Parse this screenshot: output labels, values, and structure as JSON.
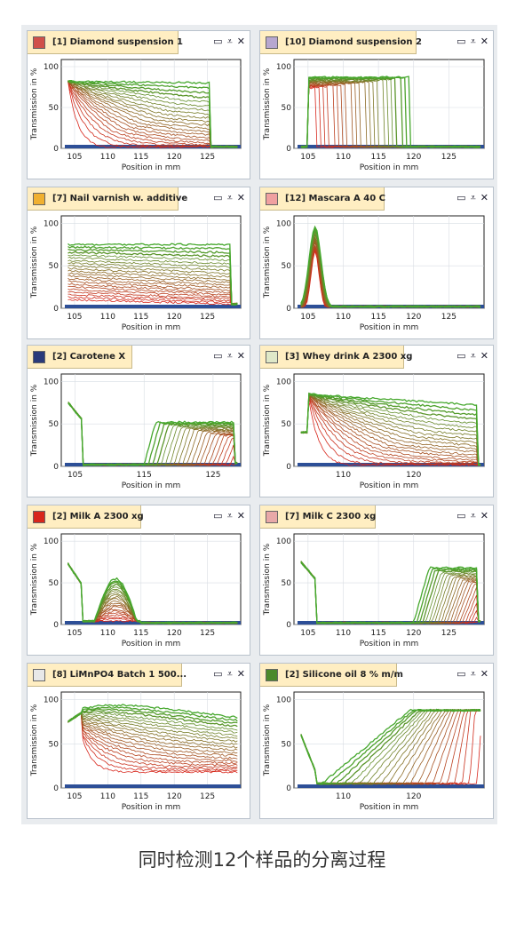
{
  "caption": "同时检测12个样品的分离过程",
  "controls": {
    "maximize": "▭",
    "menu": "⩡",
    "close": "✕"
  },
  "colors": {
    "early": "#d8261c",
    "late": "#46a82e",
    "baseline": "#2d4f97"
  },
  "axis_labels": {
    "ylabel": "Transmission in %",
    "xlabel": "Position in mm"
  },
  "chart_data": [
    {
      "type": "line",
      "title": "[1] Diamond suspension 1",
      "swatch": "#d0504a",
      "xlim": [
        103,
        130
      ],
      "ylim": [
        0,
        100
      ],
      "xticks": [
        105,
        110,
        115,
        120,
        125
      ],
      "yticks": [
        0,
        50,
        100
      ],
      "profile": "sediment",
      "params": {
        "x0": 104,
        "x1": 125.5,
        "yStart": 82,
        "yEnd": 80,
        "endDrop": [
          82,
          40
        ]
      }
    },
    {
      "type": "line",
      "title": "[10] Diamond suspension 2",
      "swatch": "#b7a7cf",
      "xlim": [
        103,
        130
      ],
      "ylim": [
        0,
        100
      ],
      "xticks": [
        105,
        110,
        115,
        120,
        125
      ],
      "yticks": [
        0,
        50,
        100
      ],
      "profile": "front",
      "params": {
        "x0": 105,
        "xFrontStart": 106,
        "xFrontEnd": 119.5,
        "yTop": 87
      }
    },
    {
      "type": "line",
      "title": "[7] Nail varnish w. additive",
      "swatch": "#f0b030",
      "xlim": [
        103,
        130
      ],
      "ylim": [
        0,
        100
      ],
      "xticks": [
        105,
        110,
        115,
        120,
        125
      ],
      "yticks": [
        0,
        50,
        100
      ],
      "profile": "plateau",
      "params": {
        "x0": 104,
        "x1": 128.5,
        "yTop": 75,
        "yLow": 10
      }
    },
    {
      "type": "line",
      "title": "[12] Mascara A 40 C",
      "swatch": "#f0a0a0",
      "xlim": [
        103,
        130
      ],
      "ylim": [
        0,
        100
      ],
      "xticks": [
        105,
        110,
        115,
        120,
        125
      ],
      "yticks": [
        0,
        50,
        100
      ],
      "profile": "spike",
      "params": {
        "xPeak": 106,
        "yPeak": 95
      }
    },
    {
      "type": "line",
      "title": "[2] Carotene X",
      "swatch": "#2a3a7a",
      "xlim": [
        103,
        129
      ],
      "ylim": [
        0,
        100
      ],
      "xticks": [
        105,
        115,
        125
      ],
      "yticks": [
        0,
        50,
        100
      ],
      "profile": "clear_rise",
      "params": {
        "xDrop": 106,
        "xRiseStart": 115,
        "xRiseEnd": 128,
        "yTop": 52
      }
    },
    {
      "type": "line",
      "title": "[3] Whey drink A 2300 xg",
      "swatch": "#dfe8c8",
      "xlim": [
        103,
        130
      ],
      "ylim": [
        0,
        100
      ],
      "xticks": [
        110,
        120
      ],
      "yticks": [
        0,
        50,
        100
      ],
      "profile": "sediment",
      "params": {
        "x0": 105,
        "x1": 129,
        "yStart": 85,
        "yEnd": 72,
        "endDrop": [
          40,
          30
        ]
      }
    },
    {
      "type": "line",
      "title": "[2] Milk A  2300 xg",
      "swatch": "#d8261c",
      "xlim": [
        103,
        130
      ],
      "ylim": [
        0,
        100
      ],
      "xticks": [
        105,
        110,
        115,
        120,
        125
      ],
      "yticks": [
        0,
        50,
        100
      ],
      "profile": "hump",
      "params": {
        "xDrop": 106,
        "xHumpStart": 108,
        "xHumpEnd": 115,
        "yTop": 55
      }
    },
    {
      "type": "line",
      "title": "[7] Milk C  2300 xg",
      "swatch": "#e8a8a8",
      "xlim": [
        103,
        130
      ],
      "ylim": [
        0,
        100
      ],
      "xticks": [
        105,
        110,
        115,
        120,
        125
      ],
      "yticks": [
        0,
        50,
        100
      ],
      "profile": "clear_rise",
      "params": {
        "xDrop": 106,
        "xRiseStart": 120,
        "xRiseEnd": 129,
        "yTop": 68
      }
    },
    {
      "type": "line",
      "title": "[8] LiMnPO4 Batch 1 500...",
      "swatch": "#e8e8e8",
      "xlim": [
        103,
        130
      ],
      "ylim": [
        0,
        100
      ],
      "xticks": [
        105,
        110,
        115,
        120,
        125
      ],
      "yticks": [
        0,
        50,
        100
      ],
      "profile": "decay",
      "params": {
        "x0": 106,
        "x1": 129,
        "yTop": 90,
        "yLow": 18
      }
    },
    {
      "type": "line",
      "title": "[2] Silicone oil 8 % m/m",
      "swatch": "#4c8a2a",
      "xlim": [
        103,
        130
      ],
      "ylim": [
        0,
        100
      ],
      "xticks": [
        110,
        120
      ],
      "yticks": [
        0,
        50,
        100
      ],
      "profile": "wedge",
      "params": {
        "xDrop": 106,
        "x0": 107,
        "x1": 129,
        "yTop": 88
      }
    }
  ]
}
